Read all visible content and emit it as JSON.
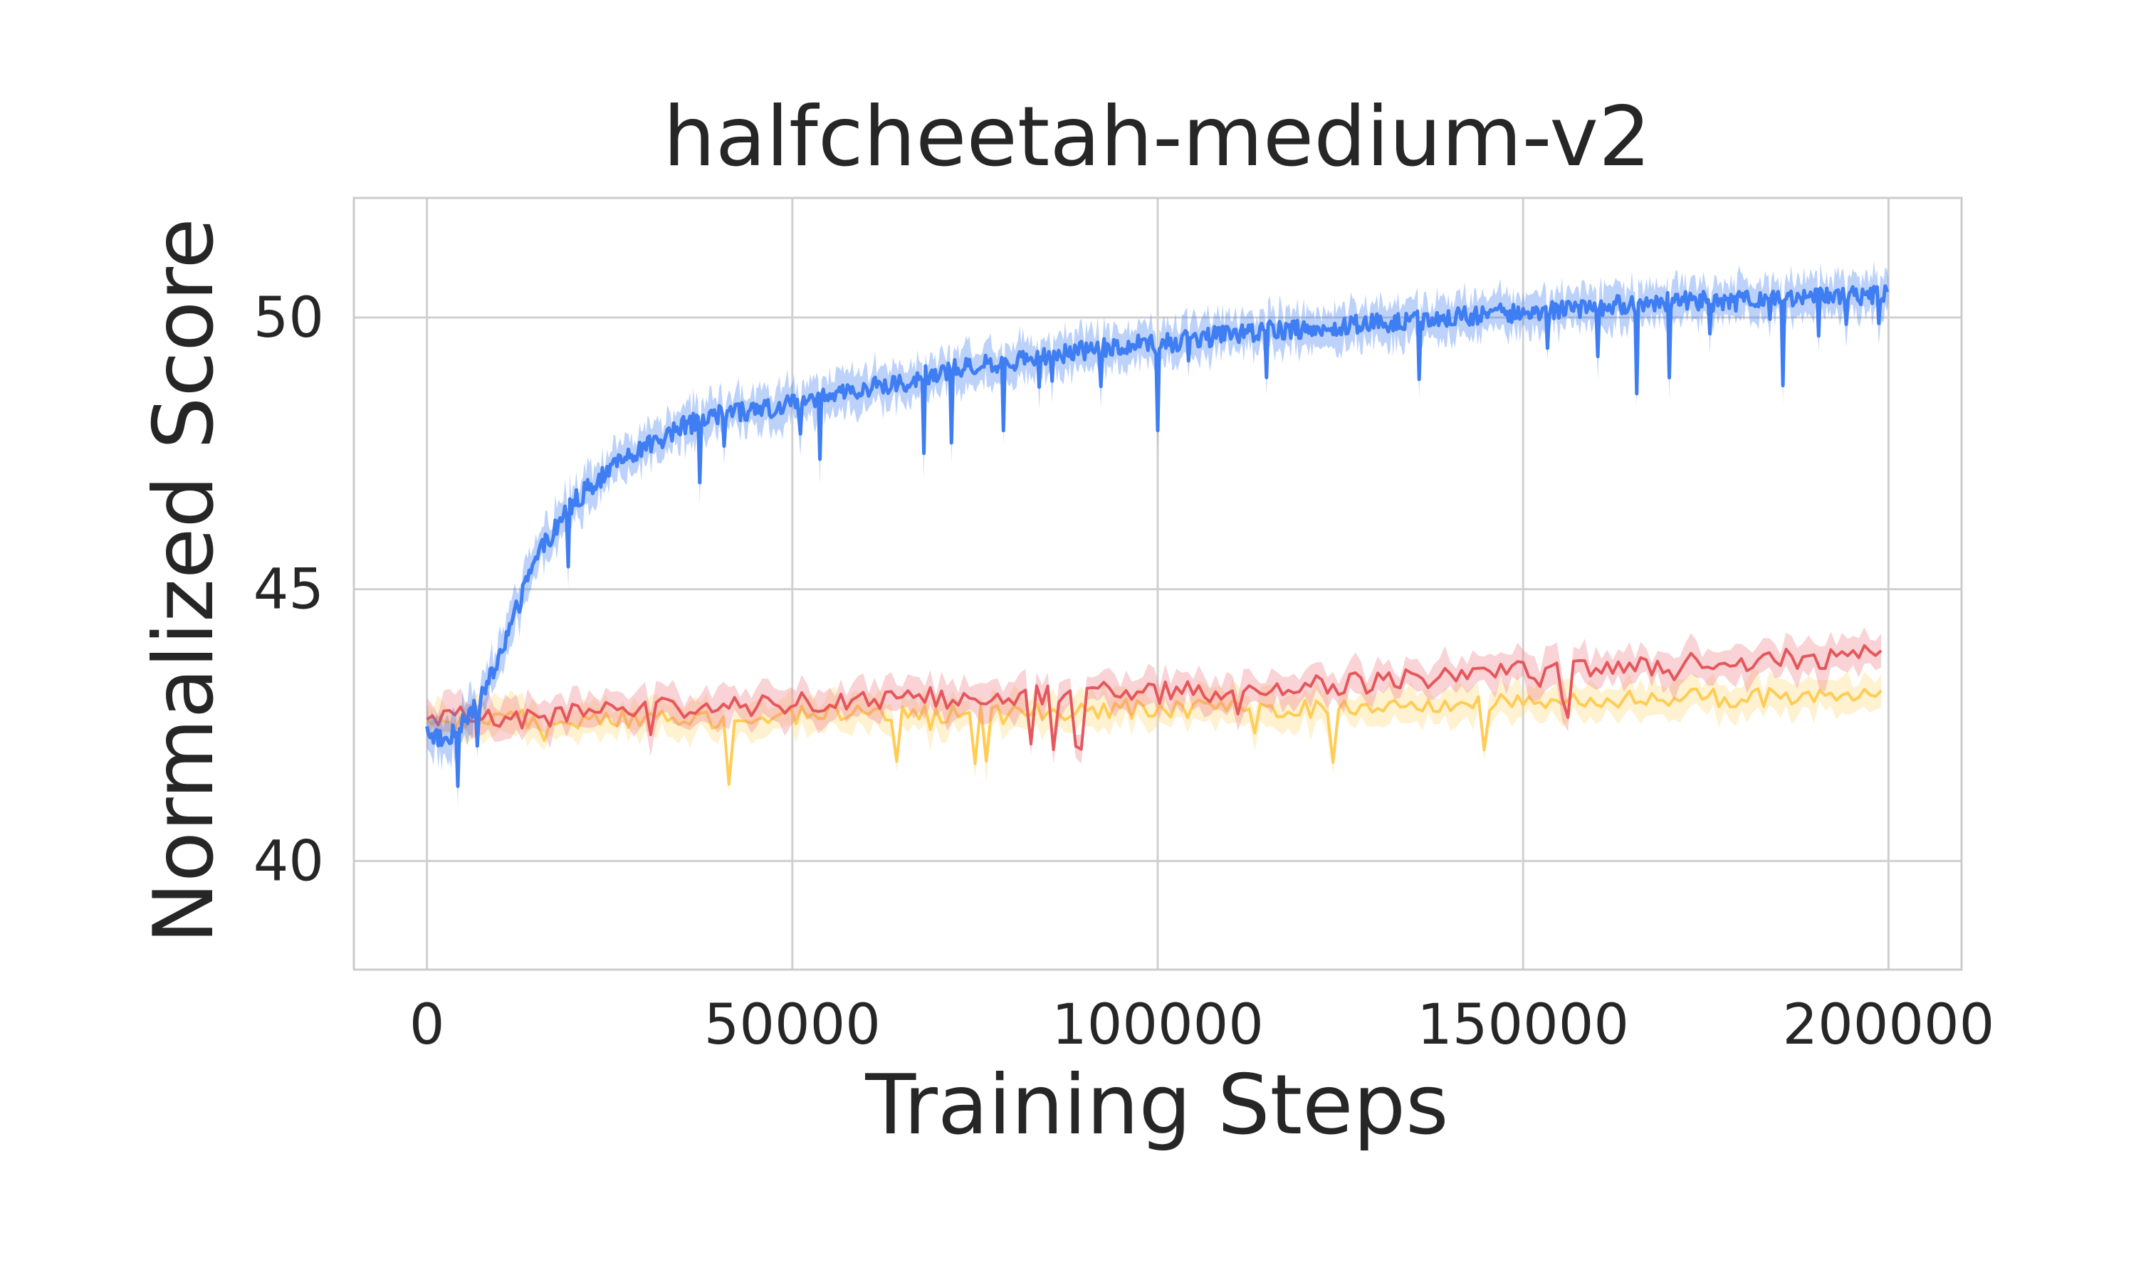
{
  "chart_data": {
    "type": "line",
    "title": "halfcheetah-medium-v2",
    "xlabel": "Training Steps",
    "ylabel": "Normalized Score",
    "xlim": [
      -10000,
      210000
    ],
    "ylim": [
      38,
      52.2
    ],
    "xticks": [
      0,
      50000,
      100000,
      150000,
      200000
    ],
    "xtick_labels": [
      "0",
      "50000",
      "100000",
      "150000",
      "200000"
    ],
    "yticks": [
      40,
      45,
      50
    ],
    "ytick_labels": [
      "40",
      "45",
      "50"
    ],
    "grid": true,
    "legend": "none",
    "colors": {
      "grid": "#d0d0d0",
      "frame": "#cccccc"
    },
    "series": [
      {
        "name": "blue",
        "color": "#3f7df3",
        "band_color": "#3f7df3",
        "x": [
          0,
          2500,
          5000,
          7500,
          10000,
          12500,
          15000,
          17500,
          20000,
          25000,
          30000,
          35000,
          40000,
          45000,
          50000,
          55000,
          60000,
          65000,
          70000,
          75000,
          80000,
          85000,
          90000,
          95000,
          100000,
          110000,
          120000,
          130000,
          140000,
          150000,
          160000,
          170000,
          180000,
          190000,
          200000
        ],
        "y": [
          42.4,
          42.2,
          42.6,
          43.0,
          43.8,
          44.7,
          45.6,
          46.1,
          46.6,
          47.2,
          47.6,
          48.0,
          48.2,
          48.3,
          48.4,
          48.6,
          48.7,
          48.8,
          49.0,
          49.1,
          49.2,
          49.3,
          49.4,
          49.5,
          49.5,
          49.7,
          49.8,
          49.9,
          50.0,
          50.1,
          50.2,
          50.3,
          50.3,
          50.4,
          50.4
        ],
        "band": 0.35,
        "noise": 0.18
      },
      {
        "name": "red",
        "color": "#e5575c",
        "band_color": "#ee8088",
        "x": [
          0,
          10000,
          20000,
          30000,
          40000,
          50000,
          60000,
          70000,
          80000,
          90000,
          100000,
          110000,
          120000,
          130000,
          140000,
          150000,
          160000,
          170000,
          180000,
          190000,
          199000
        ],
        "y": [
          42.7,
          42.6,
          42.7,
          42.8,
          42.8,
          42.9,
          43.0,
          43.0,
          43.0,
          43.1,
          43.1,
          43.1,
          43.2,
          43.3,
          43.4,
          43.5,
          43.6,
          43.6,
          43.7,
          43.7,
          43.8
        ],
        "band": 0.3,
        "noise": 0.2
      },
      {
        "name": "yellow",
        "color": "#ffcc55",
        "band_color": "#ffd97a",
        "x": [
          0,
          10000,
          20000,
          30000,
          40000,
          50000,
          60000,
          70000,
          80000,
          90000,
          100000,
          110000,
          120000,
          130000,
          140000,
          150000,
          160000,
          170000,
          180000,
          190000,
          199000
        ],
        "y": [
          42.5,
          42.6,
          42.6,
          42.6,
          42.6,
          42.7,
          42.7,
          42.7,
          42.7,
          42.8,
          42.8,
          42.8,
          42.8,
          42.9,
          42.9,
          42.9,
          42.9,
          43.0,
          43.0,
          43.0,
          43.0
        ],
        "band": 0.3,
        "noise": 0.18
      }
    ]
  }
}
